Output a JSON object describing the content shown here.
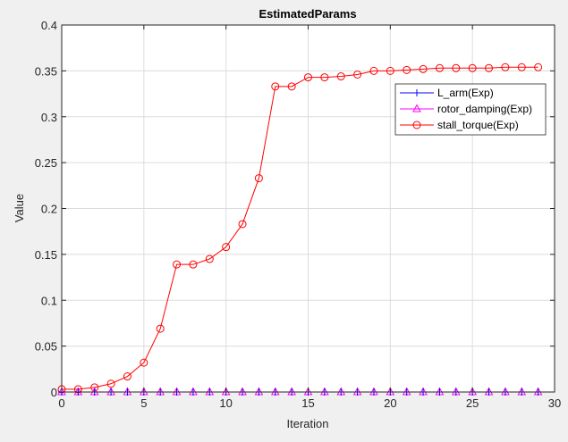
{
  "chart_data": {
    "type": "line",
    "title": "EstimatedParams",
    "xlabel": "Iteration",
    "ylabel": "Value",
    "xlim": [
      0,
      30
    ],
    "ylim": [
      0,
      0.4
    ],
    "xticks": [
      "0",
      "5",
      "10",
      "15",
      "20",
      "25",
      "30"
    ],
    "yticks": [
      "0",
      "0.05",
      "0.1",
      "0.15",
      "0.2",
      "0.25",
      "0.3",
      "0.35",
      "0.4"
    ],
    "grid": true,
    "legend_position": "top-right",
    "x": [
      0,
      1,
      2,
      3,
      4,
      5,
      6,
      7,
      8,
      9,
      10,
      11,
      12,
      13,
      14,
      15,
      16,
      17,
      18,
      19,
      20,
      21,
      22,
      23,
      24,
      25,
      26,
      27,
      28,
      29
    ],
    "series": [
      {
        "name": "L_arm(Exp)",
        "color": "#0000ff",
        "marker": "plus",
        "values": [
          0,
          0,
          0,
          0,
          0,
          0,
          0,
          0,
          0,
          0,
          0,
          0,
          0,
          0,
          0,
          0,
          0,
          0,
          0,
          0,
          0,
          0,
          0,
          0,
          0,
          0,
          0,
          0,
          0,
          0
        ]
      },
      {
        "name": "rotor_damping(Exp)",
        "color": "#ff00ff",
        "marker": "triangle",
        "values": [
          0,
          0,
          0,
          0,
          0,
          0,
          0,
          0,
          0,
          0,
          0,
          0,
          0,
          0,
          0,
          0,
          0,
          0,
          0,
          0,
          0,
          0,
          0,
          0,
          0,
          0,
          0,
          0,
          0,
          0
        ]
      },
      {
        "name": "stall_torque(Exp)",
        "color": "#ff0000",
        "marker": "circle",
        "values": [
          0.003,
          0.003,
          0.005,
          0.009,
          0.017,
          0.032,
          0.069,
          0.139,
          0.139,
          0.145,
          0.158,
          0.183,
          0.233,
          0.333,
          0.333,
          0.343,
          0.343,
          0.344,
          0.346,
          0.35,
          0.35,
          0.351,
          0.352,
          0.353,
          0.353,
          0.353,
          0.353,
          0.354,
          0.354,
          0.354
        ]
      }
    ]
  }
}
